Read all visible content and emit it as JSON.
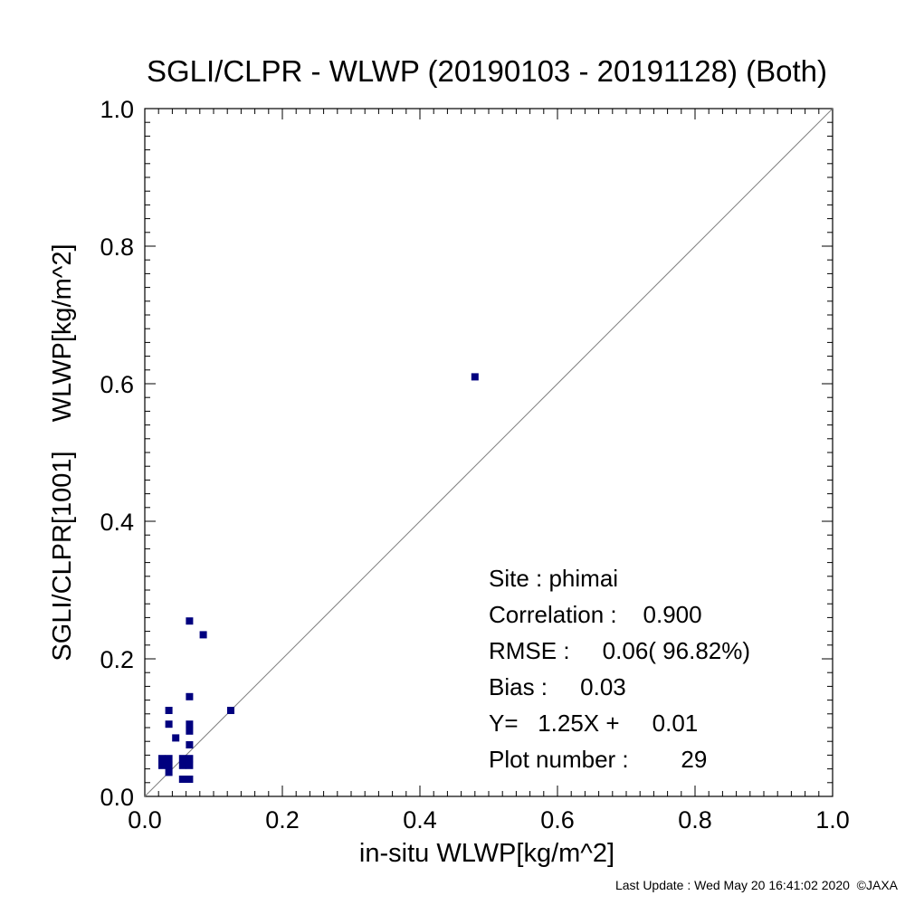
{
  "chart_data": {
    "type": "scatter",
    "title": "SGLI/CLPR - WLWP (20190103 - 20191128) (Both)",
    "xlabel": "in-situ WLWP[kg/m^2]",
    "ylabel": "SGLI/CLPR[1001]    WLWP[kg/m^2]",
    "xlim": [
      0.0,
      1.0
    ],
    "ylim": [
      0.0,
      1.0
    ],
    "xticks": [
      "0.0",
      "0.2",
      "0.4",
      "0.6",
      "0.8",
      "1.0"
    ],
    "yticks": [
      "0.0",
      "0.2",
      "0.4",
      "0.6",
      "0.8",
      "1.0"
    ],
    "grid": false,
    "reference_line": "1:1",
    "marker_color": "#00007f",
    "points": [
      {
        "x": 0.48,
        "y": 0.61
      },
      {
        "x": 0.065,
        "y": 0.255
      },
      {
        "x": 0.085,
        "y": 0.235
      },
      {
        "x": 0.125,
        "y": 0.125
      },
      {
        "x": 0.065,
        "y": 0.145
      },
      {
        "x": 0.035,
        "y": 0.125
      },
      {
        "x": 0.035,
        "y": 0.105
      },
      {
        "x": 0.065,
        "y": 0.105
      },
      {
        "x": 0.065,
        "y": 0.095
      },
      {
        "x": 0.045,
        "y": 0.085
      },
      {
        "x": 0.065,
        "y": 0.075
      },
      {
        "x": 0.025,
        "y": 0.055
      },
      {
        "x": 0.035,
        "y": 0.055
      },
      {
        "x": 0.055,
        "y": 0.055
      },
      {
        "x": 0.065,
        "y": 0.055
      },
      {
        "x": 0.025,
        "y": 0.045
      },
      {
        "x": 0.035,
        "y": 0.045
      },
      {
        "x": 0.055,
        "y": 0.045
      },
      {
        "x": 0.065,
        "y": 0.045
      },
      {
        "x": 0.035,
        "y": 0.035
      },
      {
        "x": 0.055,
        "y": 0.025
      },
      {
        "x": 0.065,
        "y": 0.025
      }
    ],
    "stats": {
      "site": "Site : phimai",
      "correlation": "Correlation :    0.900",
      "rmse": "RMSE :     0.06( 96.82%)",
      "bias": "Bias :     0.03",
      "fit": "Y=   1.25X +     0.01",
      "plot_number": "Plot number :        29"
    }
  },
  "footer": "Last Update : Wed May 20 16:41:02 2020  ©JAXA"
}
